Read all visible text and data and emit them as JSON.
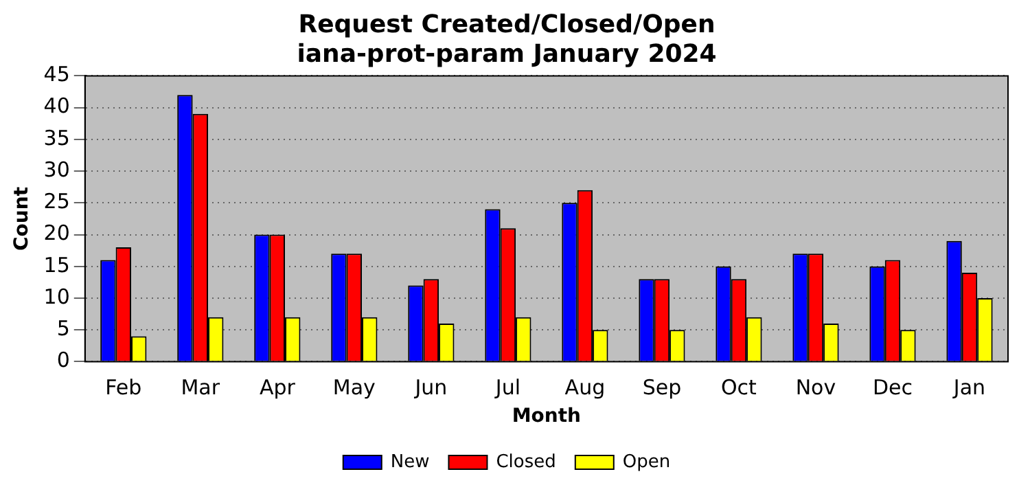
{
  "chart_data": {
    "type": "bar",
    "title": "Request Created/Closed/Open",
    "subtitle": "iana-prot-param January 2024",
    "xlabel": "Month",
    "ylabel": "Count",
    "categories": [
      "Feb",
      "Mar",
      "Apr",
      "May",
      "Jun",
      "Jul",
      "Aug",
      "Sep",
      "Oct",
      "Nov",
      "Dec",
      "Jan"
    ],
    "series": [
      {
        "name": "New",
        "color": "#0000ff",
        "values": [
          16,
          42,
          20,
          17,
          12,
          24,
          25,
          13,
          15,
          17,
          15,
          19
        ]
      },
      {
        "name": "Closed",
        "color": "#ff0000",
        "values": [
          18,
          39,
          20,
          17,
          13,
          21,
          27,
          13,
          13,
          17,
          16,
          14
        ]
      },
      {
        "name": "Open",
        "color": "#ffff00",
        "values": [
          4,
          7,
          7,
          7,
          6,
          7,
          5,
          5,
          7,
          6,
          5,
          10
        ]
      }
    ],
    "ylim": [
      0,
      45
    ],
    "yticks": [
      0,
      5,
      10,
      15,
      20,
      25,
      30,
      35,
      40,
      45
    ],
    "grid": "y",
    "legend": "bottom"
  }
}
